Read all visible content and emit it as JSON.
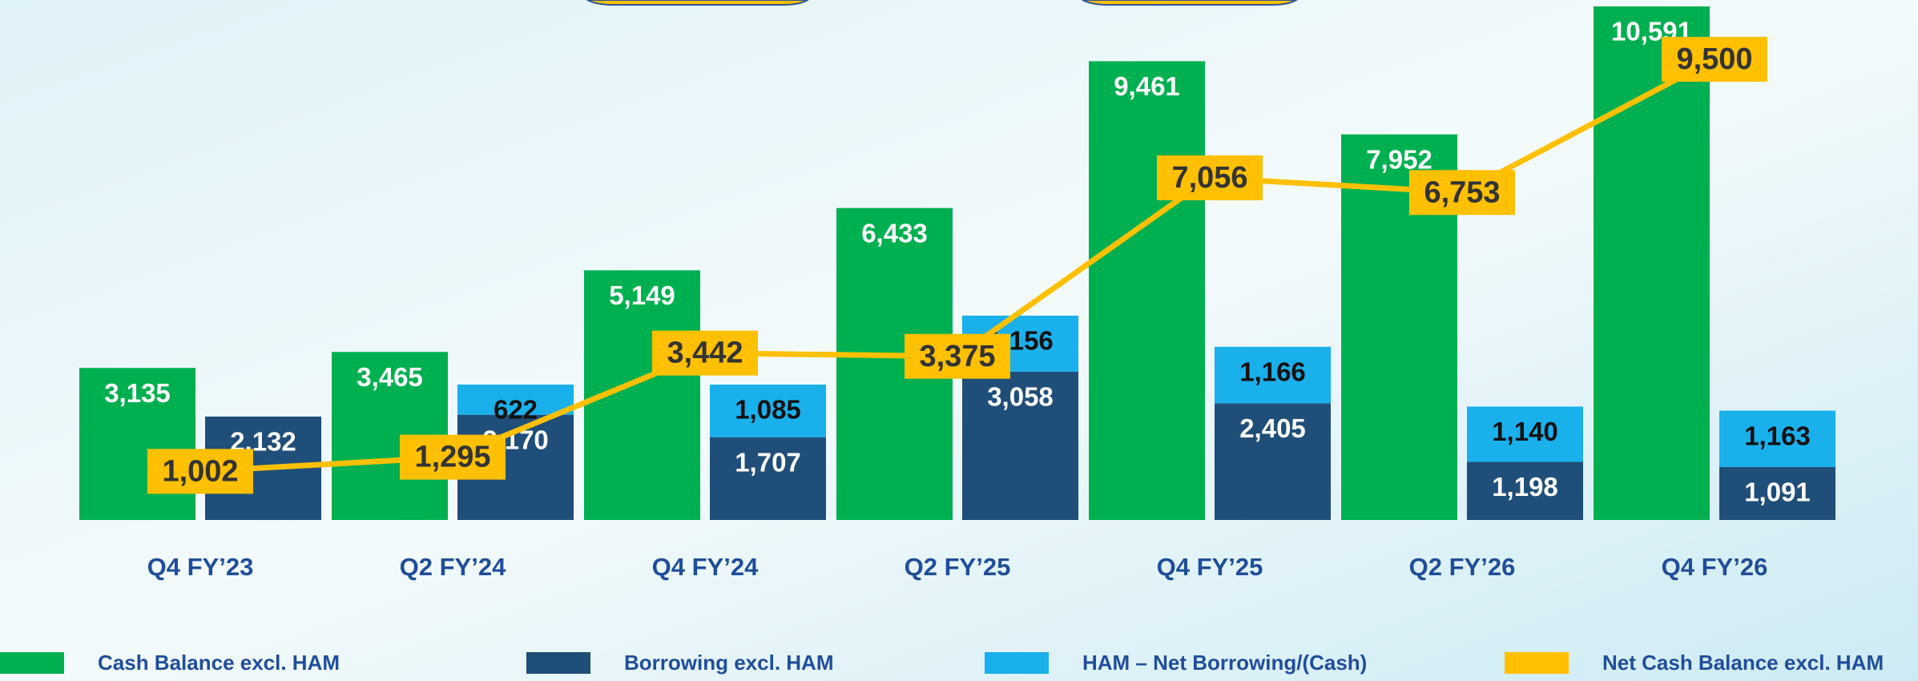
{
  "chart_data": {
    "type": "bar",
    "categories": [
      "Q4 FY’23",
      "Q2 FY’24",
      "Q4 FY’24",
      "Q2 FY’25",
      "Q4 FY’25",
      "Q2 FY’26",
      "Q4 FY’26"
    ],
    "series": [
      {
        "name": "Cash Balance excl. HAM",
        "color": "#00b050",
        "kind": "bar",
        "values": [
          3135,
          3465,
          5149,
          6433,
          9461,
          7952,
          10591
        ]
      },
      {
        "name": "Borrowing excl. HAM",
        "color": "#1f4e79",
        "kind": "stack",
        "values": [
          2132,
          2170,
          1707,
          3058,
          2405,
          1198,
          1091
        ]
      },
      {
        "name": "HAM – Net Borrowing/(Cash)",
        "color": "#19b0ec",
        "kind": "stack",
        "values": [
          null,
          622,
          1085,
          1156,
          1166,
          1140,
          1163
        ]
      },
      {
        "name": "Net Cash Balance excl. HAM",
        "color": "#ffc000",
        "kind": "line",
        "values": [
          1002,
          1295,
          3442,
          3375,
          7056,
          6753,
          9500
        ]
      }
    ]
  }
}
